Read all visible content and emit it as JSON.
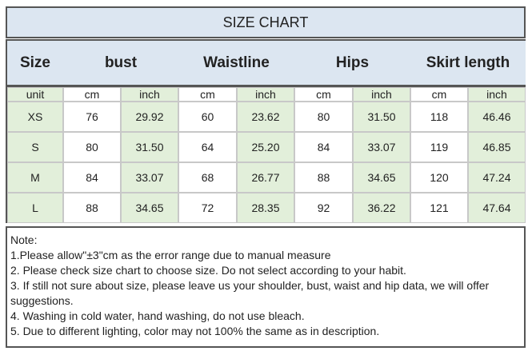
{
  "header": {
    "title": "SIZE CHART"
  },
  "table": {
    "headers": [
      "Size",
      "bust",
      "Waistline",
      "Hips",
      "Skirt length"
    ],
    "units": [
      "unit",
      "cm",
      "inch",
      "cm",
      "inch",
      "cm",
      "inch",
      "cm",
      "inch"
    ],
    "rows": [
      [
        "XS",
        "76",
        "29.92",
        "60",
        "23.62",
        "80",
        "31.50",
        "118",
        "46.46"
      ],
      [
        "S",
        "80",
        "31.50",
        "64",
        "25.20",
        "84",
        "33.07",
        "119",
        "46.85"
      ],
      [
        "M",
        "84",
        "33.07",
        "68",
        "26.77",
        "88",
        "34.65",
        "120",
        "47.24"
      ],
      [
        "L",
        "88",
        "34.65",
        "72",
        "28.35",
        "92",
        "36.22",
        "121",
        "47.64"
      ]
    ]
  },
  "notes": {
    "lines": [
      "Note:",
      "1.Please allow\"±3\"cm as the error range due to manual measure",
      "2. Please check size chart to choose size. Do not select according to your habit.",
      "3. If still not sure about size, please leave us your shoulder, bust, waist and hip data, we will offer suggestions.",
      "4. Washing in cold water, hand washing, do not use bleach.",
      "5. Due to different lighting, color may not 100% the same as in description."
    ]
  }
}
